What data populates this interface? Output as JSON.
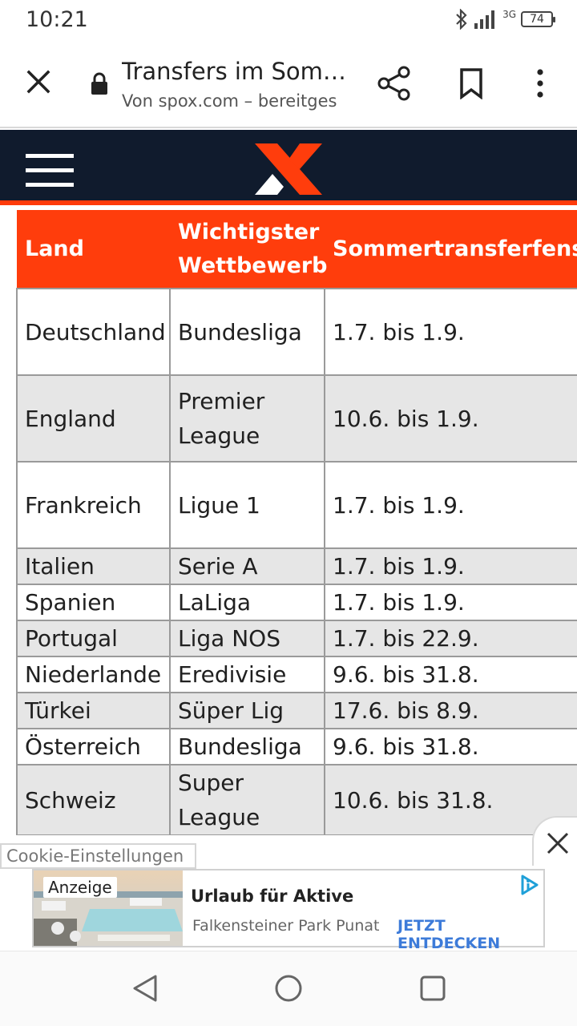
{
  "status_bar": {
    "time": "10:21",
    "network": "3G",
    "battery": "74"
  },
  "tab_bar": {
    "title": "Transfers im Som…",
    "url": "Von spox.com – bereitges"
  },
  "site": {
    "header_color": "#101b2d",
    "accent_color": "#ff3b0b"
  },
  "table": {
    "headers": {
      "land": "Land",
      "wettbewerb_line1": "Wichtigster",
      "wettbewerb_line2": "Wettbewerb",
      "transferfenster": "Sommertransferfenster"
    },
    "rows": [
      {
        "land": "Deutschland",
        "liga": "Bundesliga",
        "liga2": "",
        "zeitraum": "1.7. bis 1.9."
      },
      {
        "land": "England",
        "liga": "Premier",
        "liga2": "League",
        "zeitraum": "10.6. bis 1.9."
      },
      {
        "land": "Frankreich",
        "liga": "Ligue 1",
        "liga2": "",
        "zeitraum": "1.7. bis 1.9."
      },
      {
        "land": "Italien",
        "liga": "Serie A",
        "liga2": "",
        "zeitraum": "1.7. bis 1.9."
      },
      {
        "land": "Spanien",
        "liga": "LaLiga",
        "liga2": "",
        "zeitraum": "1.7. bis 1.9."
      },
      {
        "land": "Portugal",
        "liga": "Liga NOS",
        "liga2": "",
        "zeitraum": "1.7. bis 22.9."
      },
      {
        "land": "Niederlande",
        "liga": "Eredivisie",
        "liga2": "",
        "zeitraum": "9.6. bis 31.8."
      },
      {
        "land": "Türkei",
        "liga": "Süper Lig",
        "liga2": "",
        "zeitraum": "17.6. bis 8.9."
      },
      {
        "land": "Österreich",
        "liga": "Bundesliga",
        "liga2": "",
        "zeitraum": "9.6. bis 31.8."
      },
      {
        "land": "Schweiz",
        "liga": "Super",
        "liga2": "League",
        "zeitraum": "10.6. bis 31.8."
      }
    ]
  },
  "cookie": {
    "label": "Cookie-Einstellungen"
  },
  "ad": {
    "label": "Anzeige",
    "title": "Urlaub für Aktive",
    "subtitle": "Falkensteiner Park Punat",
    "cta": "JETZT ENTDECKEN",
    "cta_color": "#3d7bd9"
  }
}
